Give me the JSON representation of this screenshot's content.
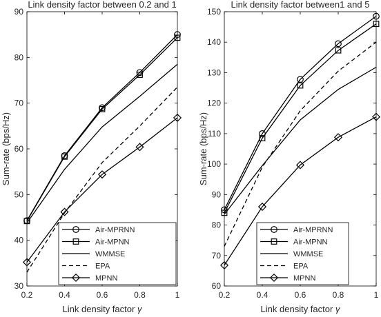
{
  "chart_data": [
    {
      "type": "line",
      "title": "Link density factor between 0.2 and 1",
      "xlabel": "Link density factor γ",
      "ylabel": "Sum-rate (bps/Hz)",
      "xlim": [
        0.2,
        1
      ],
      "ylim": [
        30,
        90
      ],
      "xticks": [
        "0.2",
        "0.4",
        "0.6",
        "0.8",
        "1"
      ],
      "yticks": [
        "30",
        "40",
        "50",
        "60",
        "70",
        "80",
        "90"
      ],
      "grid": false,
      "legend_position": "bottom-right",
      "x": [
        0.2,
        0.4,
        0.6,
        0.8,
        1.0
      ],
      "series": [
        {
          "name": "Air-MPRNN",
          "marker": "circle",
          "dash": "solid",
          "values": [
            44.3,
            58.5,
            69.0,
            76.7,
            85.0
          ]
        },
        {
          "name": "Air-MPNN",
          "marker": "square",
          "dash": "solid",
          "values": [
            44.2,
            58.3,
            68.7,
            76.2,
            84.3
          ]
        },
        {
          "name": "WMMSE",
          "marker": "none",
          "dash": "solid",
          "values": [
            43.8,
            55.5,
            64.8,
            71.5,
            78.5
          ]
        },
        {
          "name": "EPA",
          "marker": "none",
          "dash": "dashed",
          "values": [
            33.0,
            46.0,
            57.0,
            65.0,
            73.5
          ]
        },
        {
          "name": "MPNN",
          "marker": "diamond",
          "dash": "solid",
          "values": [
            35.2,
            46.2,
            54.4,
            60.4,
            66.8
          ]
        }
      ]
    },
    {
      "type": "line",
      "title": "Link density factor between1 and 5",
      "xlabel": "Link density factor γ",
      "ylabel": "Sum-rate (bps/Hz)",
      "xlim": [
        0.2,
        1
      ],
      "ylim": [
        60,
        150
      ],
      "xticks": [
        "0.2",
        "0.4",
        "0.6",
        "0.8",
        "1"
      ],
      "yticks": [
        "60",
        "70",
        "80",
        "90",
        "100",
        "110",
        "120",
        "130",
        "140",
        "150"
      ],
      "grid": false,
      "legend_position": "bottom-center",
      "x": [
        0.2,
        0.4,
        0.6,
        0.8,
        1.0
      ],
      "series": [
        {
          "name": "Air-MPRNN",
          "marker": "circle",
          "dash": "solid",
          "values": [
            85.0,
            110.0,
            127.8,
            139.5,
            148.5
          ]
        },
        {
          "name": "Air-MPNN",
          "marker": "square",
          "dash": "solid",
          "values": [
            84.0,
            108.5,
            125.8,
            137.3,
            146.0
          ]
        },
        {
          "name": "WMMSE",
          "marker": "none",
          "dash": "solid",
          "values": [
            83.5,
            99.5,
            114.5,
            124.5,
            131.8
          ]
        },
        {
          "name": "EPA",
          "marker": "none",
          "dash": "dashed",
          "values": [
            73.0,
            99.0,
            117.5,
            130.5,
            140.0
          ]
        },
        {
          "name": "MPNN",
          "marker": "diamond",
          "dash": "solid",
          "values": [
            66.8,
            86.0,
            99.7,
            108.8,
            115.5
          ]
        }
      ]
    }
  ]
}
